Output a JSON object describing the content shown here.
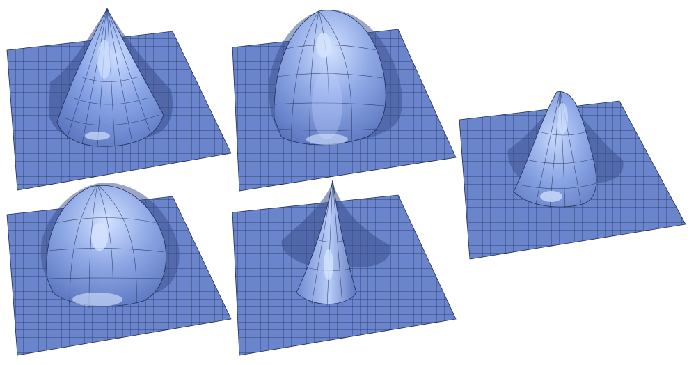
{
  "figure": {
    "background": "#ffffff",
    "plane_color": "#6a85cc",
    "bump_color": "#8aa6e8",
    "highlight_color": "#c9dbff",
    "shadow_color": "#3a4f8c",
    "grid_line_color": "#1f2d55"
  },
  "surfaces": [
    {
      "id": "cone-peak",
      "shape": "cone"
    },
    {
      "id": "wide-dome",
      "shape": "dome"
    },
    {
      "id": "gaussian-bump",
      "shape": "gaussian"
    },
    {
      "id": "wide-dome-lower",
      "shape": "dome"
    },
    {
      "id": "narrow-spike",
      "shape": "spike"
    }
  ]
}
